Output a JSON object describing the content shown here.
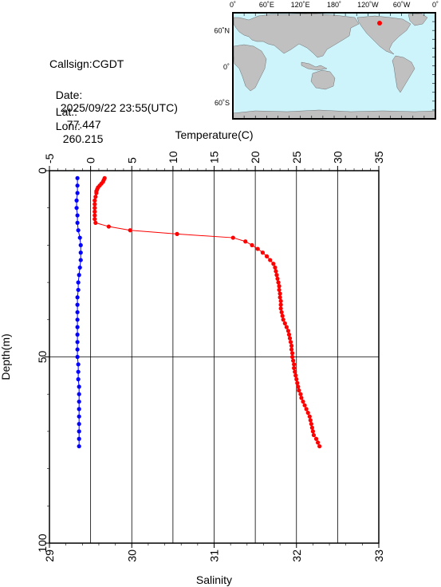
{
  "station": {
    "callsign": "Callsign:CGDT",
    "date_label": "Date:",
    "date_value": "2025/09/22 23:55(UTC)",
    "lat_label": "Lat.:",
    "lat_value": "77.447",
    "lon_label": "Lon.:",
    "lon_value": "260.215"
  },
  "map": {
    "top_labels": [
      "0˚",
      "60˚E",
      "120˚E",
      "180˚",
      "120˚W",
      "60˚W",
      "0˚"
    ],
    "right_labels": [
      "60˚N",
      "0˚",
      "60˚S"
    ],
    "colors": {
      "ocean": "#cdf3fb",
      "land": "#c0c0c0",
      "marker": "#ff0000"
    }
  },
  "chart_data": {
    "type": "line",
    "top_axis": {
      "label": "Temperature(C)",
      "range": [
        -5,
        35
      ],
      "ticks": [
        "-5",
        "0",
        "5",
        "10",
        "15",
        "20",
        "25",
        "30",
        "35"
      ]
    },
    "bottom_axis": {
      "label": "Salinity",
      "range": [
        29,
        33
      ],
      "ticks": [
        "29",
        "30",
        "31",
        "32",
        "33"
      ]
    },
    "y_axis": {
      "label": "Depth(m)",
      "range": [
        0,
        100
      ],
      "inverted": true,
      "ticks": [
        "0",
        "50",
        "100"
      ]
    },
    "grid": true,
    "series": [
      {
        "color": "#ff0000",
        "axis": "top",
        "depth": [
          2,
          2.5,
          3,
          3.5,
          4,
          4.5,
          5,
          5.5,
          6,
          7,
          8,
          9,
          10,
          11,
          12,
          13,
          14,
          15,
          16,
          17,
          18,
          19,
          20,
          21,
          22,
          23,
          24,
          25,
          26,
          27,
          28,
          29,
          30,
          31,
          32,
          33,
          34,
          35,
          36,
          37,
          38,
          39,
          40,
          41,
          42,
          43,
          44,
          45,
          46,
          47,
          48,
          49,
          50,
          51,
          52,
          53,
          54,
          55,
          56,
          57,
          58,
          59,
          60,
          61,
          62,
          63,
          64,
          65,
          66,
          67,
          68,
          69,
          70,
          71,
          72,
          73,
          74
        ],
        "values": [
          1.7,
          1.6,
          1.5,
          1.3,
          1.1,
          0.9,
          0.8,
          0.7,
          0.7,
          0.6,
          0.5,
          0.5,
          0.5,
          0.5,
          0.5,
          0.5,
          0.6,
          2.2,
          4.8,
          10.5,
          17.3,
          18.8,
          19.6,
          20.3,
          20.9,
          21.4,
          21.8,
          22.2,
          22.4,
          22.5,
          22.6,
          22.7,
          22.8,
          22.9,
          22.9,
          23.0,
          23.0,
          23.1,
          23.1,
          23.1,
          23.2,
          23.3,
          23.4,
          23.6,
          23.8,
          24.0,
          24.1,
          24.2,
          24.3,
          24.4,
          24.4,
          24.5,
          24.5,
          24.6,
          24.7,
          24.7,
          24.8,
          24.9,
          25.0,
          25.1,
          25.2,
          25.3,
          25.5,
          25.6,
          25.8,
          26.0,
          26.2,
          26.4,
          26.6,
          26.7,
          26.8,
          26.9,
          27.0,
          27.1,
          27.4,
          27.6,
          27.8
        ]
      },
      {
        "color": "#0000ff",
        "axis": "bottom",
        "depth": [
          2,
          4,
          6,
          8,
          10,
          12,
          14,
          16,
          18,
          20,
          22,
          24,
          26,
          28,
          30,
          32,
          34,
          36,
          38,
          40,
          42,
          44,
          46,
          48,
          50,
          52,
          54,
          56,
          58,
          60,
          62,
          64,
          66,
          68,
          70,
          72,
          74
        ],
        "values": [
          29.34,
          29.34,
          29.34,
          29.33,
          29.33,
          29.34,
          29.34,
          29.35,
          29.37,
          29.38,
          29.38,
          29.38,
          29.37,
          29.36,
          29.35,
          29.35,
          29.34,
          29.34,
          29.34,
          29.34,
          29.34,
          29.34,
          29.34,
          29.34,
          29.34,
          29.35,
          29.35,
          29.35,
          29.36,
          29.36,
          29.36,
          29.36,
          29.36,
          29.36,
          29.36,
          29.36,
          29.36
        ]
      }
    ]
  }
}
